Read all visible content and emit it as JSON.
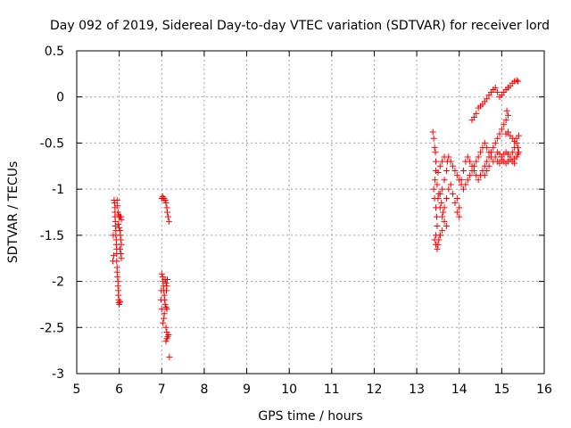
{
  "chart_data": {
    "type": "scatter",
    "title": "Day 092 of 2019, Sidereal Day-to-day VTEC variation (SDTVAR) for receiver lord",
    "xlabel": "GPS time / hours",
    "ylabel": "SDTVAR / TECUs",
    "xlim": [
      5,
      16
    ],
    "ylim": [
      -3,
      0.5
    ],
    "xticks": [
      5,
      6,
      7,
      8,
      9,
      10,
      11,
      12,
      13,
      14,
      15,
      16
    ],
    "xtick_labels": [
      "5",
      "6",
      "7",
      "8",
      "9",
      "10",
      "11",
      "12",
      "13",
      "14",
      "15",
      "16"
    ],
    "yticks": [
      -3,
      -2.5,
      -2,
      -1.5,
      -1,
      -0.5,
      0,
      0.5
    ],
    "ytick_labels": [
      "-3",
      "-2.5",
      "-2",
      "-1.5",
      "-1",
      "-0.5",
      "0",
      "0.5"
    ],
    "grid": true,
    "marker": "+",
    "series": [
      {
        "name": "SDTVAR",
        "color": "#ff0000",
        "points": [
          [
            5.88,
            -1.12
          ],
          [
            5.89,
            -1.15
          ],
          [
            5.9,
            -1.2
          ],
          [
            5.9,
            -1.25
          ],
          [
            5.9,
            -1.3
          ],
          [
            5.91,
            -1.35
          ],
          [
            5.91,
            -1.4
          ],
          [
            5.92,
            -1.45
          ],
          [
            5.92,
            -1.5
          ],
          [
            5.93,
            -1.55
          ],
          [
            5.93,
            -1.6
          ],
          [
            5.94,
            -1.65
          ],
          [
            5.94,
            -1.7
          ],
          [
            5.94,
            -1.78
          ],
          [
            5.95,
            -1.85
          ],
          [
            5.95,
            -1.9
          ],
          [
            5.96,
            -1.95
          ],
          [
            5.97,
            -2.0
          ],
          [
            5.97,
            -2.05
          ],
          [
            5.98,
            -2.1
          ],
          [
            5.98,
            -2.15
          ],
          [
            5.99,
            -2.2
          ],
          [
            5.99,
            -2.23
          ],
          [
            6.0,
            -2.25
          ],
          [
            6.02,
            -2.22
          ],
          [
            5.95,
            -1.12
          ],
          [
            5.96,
            -1.18
          ],
          [
            5.97,
            -1.25
          ],
          [
            5.98,
            -1.28
          ],
          [
            6.0,
            -1.3
          ],
          [
            6.02,
            -1.3
          ],
          [
            6.04,
            -1.3
          ],
          [
            6.05,
            -1.33
          ],
          [
            5.98,
            -1.38
          ],
          [
            6.0,
            -1.42
          ],
          [
            6.02,
            -1.45
          ],
          [
            6.03,
            -1.5
          ],
          [
            6.04,
            -1.55
          ],
          [
            6.05,
            -1.6
          ],
          [
            6.02,
            -1.65
          ],
          [
            6.04,
            -1.7
          ],
          [
            6.05,
            -1.75
          ],
          [
            5.85,
            -1.78
          ],
          [
            5.87,
            -1.72
          ],
          [
            5.86,
            -1.5
          ],
          [
            7.0,
            -1.1
          ],
          [
            7.02,
            -1.08
          ],
          [
            7.05,
            -1.1
          ],
          [
            7.08,
            -1.12
          ],
          [
            7.1,
            -1.15
          ],
          [
            7.12,
            -1.2
          ],
          [
            7.13,
            -1.25
          ],
          [
            7.15,
            -1.3
          ],
          [
            7.17,
            -1.35
          ],
          [
            7.0,
            -1.92
          ],
          [
            7.02,
            -1.95
          ],
          [
            7.03,
            -2.0
          ],
          [
            7.04,
            -2.05
          ],
          [
            7.05,
            -2.1
          ],
          [
            7.06,
            -2.15
          ],
          [
            7.07,
            -2.2
          ],
          [
            7.08,
            -2.25
          ],
          [
            7.1,
            -2.28
          ],
          [
            7.12,
            -2.3
          ],
          [
            7.08,
            -1.98
          ],
          [
            7.1,
            -2.02
          ],
          [
            7.12,
            -2.05
          ],
          [
            7.13,
            -1.98
          ],
          [
            7.11,
            -2.1
          ],
          [
            7.05,
            -2.4
          ],
          [
            7.03,
            -2.45
          ],
          [
            7.06,
            -2.35
          ],
          [
            7.0,
            -2.3
          ],
          [
            6.98,
            -2.2
          ],
          [
            6.99,
            -2.1
          ],
          [
            7.1,
            -2.5
          ],
          [
            7.12,
            -2.55
          ],
          [
            7.14,
            -2.6
          ],
          [
            7.16,
            -2.58
          ],
          [
            7.1,
            -2.65
          ],
          [
            7.12,
            -2.62
          ],
          [
            7.18,
            -2.82
          ],
          [
            13.38,
            -0.38
          ],
          [
            13.4,
            -0.45
          ],
          [
            13.42,
            -0.55
          ],
          [
            13.44,
            -0.6
          ],
          [
            13.45,
            -0.7
          ],
          [
            13.45,
            -0.8
          ],
          [
            13.43,
            -0.9
          ],
          [
            13.4,
            -1.0
          ],
          [
            13.42,
            -1.1
          ],
          [
            13.45,
            -1.2
          ],
          [
            13.47,
            -1.3
          ],
          [
            13.48,
            -1.4
          ],
          [
            13.45,
            -1.5
          ],
          [
            13.42,
            -1.55
          ],
          [
            13.45,
            -1.6
          ],
          [
            13.48,
            -1.65
          ],
          [
            13.5,
            -1.6
          ],
          [
            13.52,
            -1.55
          ],
          [
            13.55,
            -1.5
          ],
          [
            13.5,
            -1.1
          ],
          [
            13.55,
            -1.05
          ],
          [
            13.6,
            -1.0
          ],
          [
            13.65,
            -0.9
          ],
          [
            13.7,
            -0.8
          ],
          [
            13.72,
            -0.7
          ],
          [
            13.75,
            -0.65
          ],
          [
            13.8,
            -0.7
          ],
          [
            13.85,
            -0.75
          ],
          [
            13.9,
            -0.8
          ],
          [
            13.95,
            -0.85
          ],
          [
            14.0,
            -0.9
          ],
          [
            14.05,
            -0.95
          ],
          [
            14.1,
            -1.0
          ],
          [
            14.15,
            -0.95
          ],
          [
            14.2,
            -0.9
          ],
          [
            14.25,
            -0.85
          ],
          [
            14.3,
            -0.8
          ],
          [
            14.35,
            -0.75
          ],
          [
            14.4,
            -0.7
          ],
          [
            14.45,
            -0.65
          ],
          [
            14.5,
            -0.6
          ],
          [
            14.55,
            -0.55
          ],
          [
            14.6,
            -0.5
          ],
          [
            14.65,
            -0.55
          ],
          [
            14.7,
            -0.6
          ],
          [
            14.75,
            -0.65
          ],
          [
            14.8,
            -0.7
          ],
          [
            14.85,
            -0.65
          ],
          [
            14.9,
            -0.6
          ],
          [
            14.95,
            -0.62
          ],
          [
            15.0,
            -0.65
          ],
          [
            15.05,
            -0.62
          ],
          [
            15.1,
            -0.6
          ],
          [
            15.15,
            -0.62
          ],
          [
            15.2,
            -0.65
          ],
          [
            15.25,
            -0.6
          ],
          [
            15.3,
            -0.55
          ],
          [
            15.35,
            -0.45
          ],
          [
            15.4,
            -0.42
          ],
          [
            14.3,
            -0.25
          ],
          [
            14.35,
            -0.22
          ],
          [
            14.4,
            -0.18
          ],
          [
            14.45,
            -0.12
          ],
          [
            14.5,
            -0.1
          ],
          [
            14.55,
            -0.08
          ],
          [
            14.6,
            -0.05
          ],
          [
            14.65,
            -0.02
          ],
          [
            14.7,
            0.02
          ],
          [
            14.75,
            0.05
          ],
          [
            14.8,
            0.08
          ],
          [
            14.85,
            0.1
          ],
          [
            14.9,
            0.05
          ],
          [
            14.95,
            0.0
          ],
          [
            15.0,
            0.02
          ],
          [
            15.05,
            0.05
          ],
          [
            15.1,
            0.08
          ],
          [
            15.15,
            0.1
          ],
          [
            15.2,
            0.12
          ],
          [
            15.25,
            0.15
          ],
          [
            15.3,
            0.17
          ],
          [
            15.35,
            0.18
          ],
          [
            15.38,
            0.17
          ],
          [
            14.6,
            -0.75
          ],
          [
            14.65,
            -0.7
          ],
          [
            14.7,
            -0.65
          ],
          [
            14.75,
            -0.6
          ],
          [
            14.8,
            -0.55
          ],
          [
            14.85,
            -0.5
          ],
          [
            14.9,
            -0.45
          ],
          [
            14.95,
            -0.4
          ],
          [
            15.0,
            -0.35
          ],
          [
            15.05,
            -0.3
          ],
          [
            15.1,
            -0.25
          ],
          [
            15.15,
            -0.2
          ],
          [
            15.12,
            -0.15
          ],
          [
            13.55,
            -1.2
          ],
          [
            13.6,
            -1.3
          ],
          [
            13.65,
            -1.35
          ],
          [
            13.7,
            -1.4
          ],
          [
            13.6,
            -1.45
          ],
          [
            13.55,
            -1.5
          ],
          [
            13.65,
            -1.2
          ],
          [
            13.7,
            -1.1
          ],
          [
            13.75,
            -1.0
          ],
          [
            13.8,
            -0.95
          ],
          [
            13.85,
            -1.05
          ],
          [
            13.9,
            -1.15
          ],
          [
            13.95,
            -1.25
          ],
          [
            14.0,
            -1.3
          ],
          [
            14.0,
            -1.2
          ],
          [
            13.95,
            -1.1
          ],
          [
            14.05,
            -0.9
          ],
          [
            14.1,
            -0.8
          ],
          [
            14.15,
            -0.7
          ],
          [
            14.2,
            -0.65
          ],
          [
            14.25,
            -0.7
          ],
          [
            14.3,
            -0.75
          ],
          [
            14.35,
            -0.8
          ],
          [
            14.4,
            -0.85
          ],
          [
            14.45,
            -0.9
          ],
          [
            14.5,
            -0.85
          ],
          [
            14.55,
            -0.8
          ],
          [
            14.6,
            -0.85
          ],
          [
            14.65,
            -0.8
          ],
          [
            14.7,
            -0.75
          ],
          [
            15.1,
            -0.4
          ],
          [
            15.15,
            -0.38
          ],
          [
            15.2,
            -0.42
          ],
          [
            15.25,
            -0.45
          ],
          [
            15.3,
            -0.48
          ],
          [
            15.35,
            -0.5
          ],
          [
            15.38,
            -0.55
          ],
          [
            15.4,
            -0.6
          ],
          [
            15.38,
            -0.62
          ],
          [
            15.35,
            -0.65
          ],
          [
            15.3,
            -0.67
          ],
          [
            14.9,
            -0.7
          ],
          [
            14.95,
            -0.72
          ],
          [
            15.0,
            -0.68
          ],
          [
            15.05,
            -0.7
          ],
          [
            15.1,
            -0.72
          ],
          [
            15.15,
            -0.7
          ],
          [
            15.2,
            -0.68
          ],
          [
            15.25,
            -0.7
          ],
          [
            15.3,
            -0.72
          ],
          [
            13.6,
            -0.7
          ],
          [
            13.65,
            -0.65
          ],
          [
            13.55,
            -0.75
          ],
          [
            13.5,
            -0.82
          ],
          [
            13.48,
            -0.95
          ],
          [
            13.52,
            -1.05
          ],
          [
            13.58,
            -1.15
          ],
          [
            13.62,
            -1.25
          ]
        ]
      }
    ]
  }
}
